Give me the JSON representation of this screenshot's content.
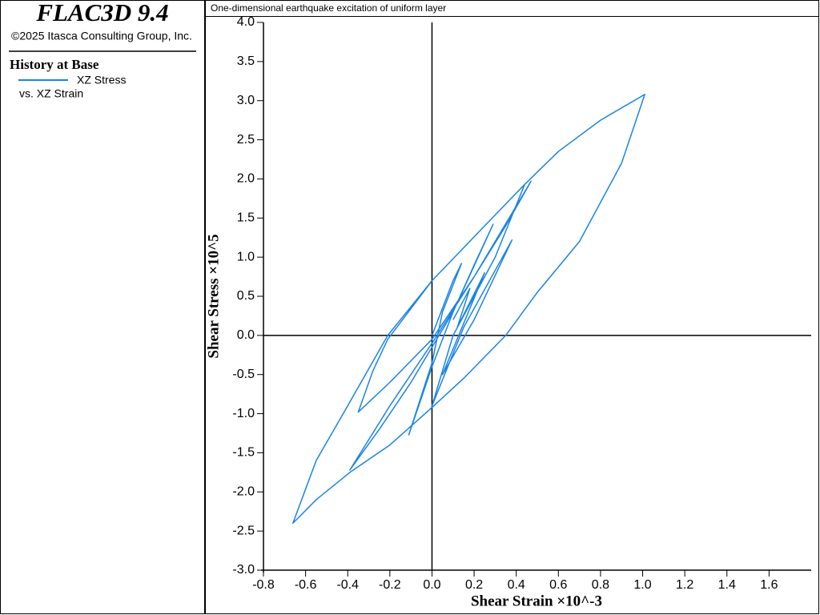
{
  "app": {
    "title": "FLAC3D 9.4",
    "copyright": "©2025 Itasca Consulting Group, Inc.",
    "legend_title": "History at Base",
    "legend_subtitle": "vs. XZ Strain"
  },
  "chart_data": {
    "type": "line",
    "title": "One-dimensional earthquake excitation of uniform layer",
    "xlabel": "Shear Strain ×10^-3",
    "ylabel": "Shear Stress ×10^5",
    "xlim": [
      -0.8,
      1.8
    ],
    "ylim": [
      -3,
      4
    ],
    "xticks": [
      -0.8,
      -0.6,
      -0.4,
      -0.2,
      {
        "value": 0,
        "label": "0.0"
      },
      0.2,
      0.4,
      0.6,
      0.8,
      {
        "value": 1,
        "label": "1.0"
      },
      1.2,
      1.4,
      1.6
    ],
    "yticks": [
      {
        "value": -3,
        "label": "-3.0"
      },
      -2.5,
      {
        "value": -2,
        "label": "-2.0"
      },
      -1.5,
      {
        "value": -1,
        "label": "-1.0"
      },
      -0.5,
      {
        "value": 0,
        "label": "0.0"
      },
      0.5,
      {
        "value": 1,
        "label": "1.0"
      },
      1.5,
      {
        "value": 2,
        "label": "2.0"
      },
      2.5,
      {
        "value": 3,
        "label": "3.0"
      },
      3.5,
      {
        "value": 4,
        "label": "4.0"
      }
    ],
    "zero_lines": true,
    "series": [
      {
        "name": "XZ Stress",
        "color": "#1a84e4",
        "x": [
          0,
          0.05,
          0.1,
          0.14,
          0.05,
          0.0,
          -0.06,
          -0.11,
          0.0,
          0.1,
          0.2,
          0.29,
          0.1,
          -0.1,
          -0.25,
          -0.39,
          -0.2,
          0.0,
          0.2,
          0.35,
          0.47,
          0.2,
          0.0,
          -0.2,
          -0.35,
          -0.28,
          -0.21,
          0.0,
          0.25,
          0.44,
          0.6,
          0.8,
          1.01,
          0.9,
          0.7,
          0.5,
          0.35,
          0.15,
          0.0,
          -0.2,
          -0.39,
          -0.55,
          -0.66,
          -0.55,
          -0.4,
          -0.21,
          0.0,
          0.25,
          0.44,
          0.3,
          0.1,
          0.0,
          0.15,
          0.38,
          0.2,
          0.05,
          0.25,
          0.12,
          0.18,
          0.1
        ],
        "y": [
          0,
          0.35,
          0.7,
          0.92,
          0.3,
          -0.35,
          -0.85,
          -1.27,
          -0.4,
          0.3,
          0.9,
          1.42,
          0.3,
          -0.6,
          -1.2,
          -1.72,
          -0.9,
          -0.1,
          0.75,
          1.4,
          1.97,
          0.75,
          -0.05,
          -0.6,
          -0.98,
          -0.45,
          -0.05,
          0.7,
          1.4,
          1.93,
          2.35,
          2.75,
          3.08,
          2.2,
          1.2,
          0.55,
          0,
          -0.55,
          -0.92,
          -1.4,
          -1.75,
          -2.1,
          -2.4,
          -1.6,
          -0.9,
          0,
          0.7,
          1.4,
          1.93,
          1.0,
          0.0,
          -0.9,
          0.1,
          1.22,
          0.2,
          -0.5,
          0.8,
          0.1,
          0.6,
          0.2
        ]
      }
    ]
  }
}
